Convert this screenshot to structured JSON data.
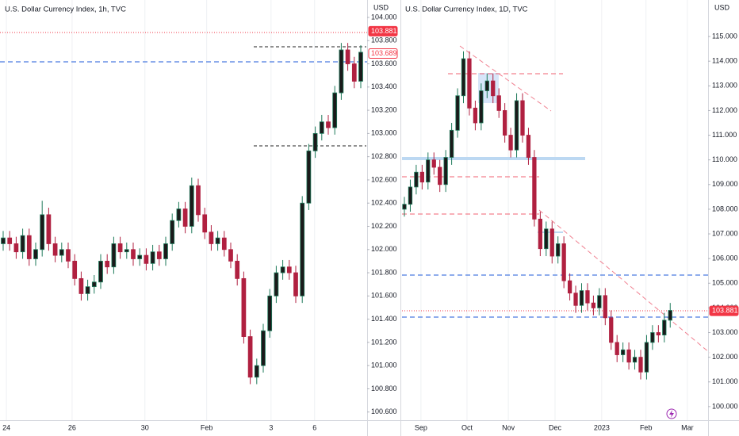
{
  "chart_data": [
    {
      "type": "candlestick",
      "title": "U.S. Dollar Currency Index, 1h, TVC",
      "currency": "USD",
      "up_color": "#1e7a5a",
      "down_color": "#b02040",
      "grid": "vertical",
      "ylim": [
        100.53,
        104.15
      ],
      "yticks": [
        {
          "value": 100.6,
          "label": "100.600"
        },
        {
          "value": 100.8,
          "label": "100.800"
        },
        {
          "value": 101,
          "label": "101.000"
        },
        {
          "value": 101.2,
          "label": "101.200"
        },
        {
          "value": 101.4,
          "label": "101.400"
        },
        {
          "value": 101.6,
          "label": "101.600"
        },
        {
          "value": 101.8,
          "label": "101.800"
        },
        {
          "value": 102,
          "label": "102.000"
        },
        {
          "value": 102.2,
          "label": "102.200"
        },
        {
          "value": 102.4,
          "label": "102.400"
        },
        {
          "value": 102.6,
          "label": "102.600"
        },
        {
          "value": 102.8,
          "label": "102.800"
        },
        {
          "value": 103,
          "label": "103.000"
        },
        {
          "value": 103.2,
          "label": "103.200"
        },
        {
          "value": 103.4,
          "label": "103.400"
        },
        {
          "value": 103.6,
          "label": "103.600"
        },
        {
          "value": 103.8,
          "label": "103.800"
        },
        {
          "value": 104,
          "label": "104.000"
        }
      ],
      "xticks": [
        {
          "value": 0.5,
          "label": "24"
        },
        {
          "value": 10.6,
          "label": "26"
        },
        {
          "value": 21.8,
          "label": "30"
        },
        {
          "value": 31.3,
          "label": "Feb"
        },
        {
          "value": 41.2,
          "label": "3"
        },
        {
          "value": 47.9,
          "label": "6"
        }
      ],
      "markers": [
        {
          "value": 103.881,
          "style": "filled"
        },
        {
          "value": 103.689,
          "style": "outlined"
        }
      ],
      "open": [
        102.05,
        102.1,
        102.05,
        101.98,
        102.12,
        101.92,
        102.0,
        102.3,
        102.05,
        101.95,
        102.0,
        101.9,
        101.75,
        101.62,
        101.68,
        101.72,
        101.9,
        101.85,
        102.05,
        101.98,
        102.0,
        101.92,
        101.95,
        101.88,
        101.98,
        101.92,
        102.05,
        102.25,
        102.35,
        102.2,
        102.55,
        102.3,
        102.15,
        102.05,
        102.1,
        102.0,
        101.9,
        101.75,
        101.25,
        100.9,
        101.0,
        101.3,
        101.6,
        101.8,
        101.85,
        101.8,
        101.6,
        102.4,
        102.85,
        103.0,
        103.1,
        103.05,
        103.35,
        103.72,
        103.6,
        103.45
      ],
      "high": [
        102.16,
        102.16,
        102.11,
        102.18,
        102.18,
        102.06,
        102.42,
        102.36,
        102.11,
        102.06,
        102.06,
        101.96,
        101.81,
        101.74,
        101.78,
        101.96,
        101.96,
        102.11,
        102.11,
        102.06,
        102.06,
        102.01,
        102.01,
        102.04,
        102.04,
        102.11,
        102.31,
        102.41,
        102.41,
        102.62,
        102.61,
        102.36,
        102.21,
        102.16,
        102.16,
        102.06,
        101.96,
        101.81,
        101.31,
        101.06,
        101.36,
        101.66,
        101.86,
        101.91,
        101.91,
        101.86,
        102.46,
        102.91,
        103.06,
        103.16,
        103.16,
        103.41,
        103.78,
        103.78,
        103.66,
        103.76
      ],
      "low": [
        101.99,
        101.99,
        101.92,
        101.92,
        101.86,
        101.86,
        101.94,
        101.99,
        101.89,
        101.89,
        101.84,
        101.69,
        101.56,
        101.56,
        101.62,
        101.66,
        101.79,
        101.79,
        101.92,
        101.92,
        101.86,
        101.86,
        101.82,
        101.82,
        101.86,
        101.86,
        101.99,
        102.19,
        102.14,
        102.14,
        102.24,
        102.09,
        101.99,
        101.99,
        101.94,
        101.84,
        101.69,
        101.19,
        100.84,
        100.84,
        100.94,
        101.24,
        101.54,
        101.74,
        101.74,
        101.54,
        101.54,
        102.34,
        102.79,
        102.94,
        102.99,
        102.99,
        103.29,
        103.54,
        103.39,
        103.39
      ],
      "close": [
        102.1,
        102.05,
        101.98,
        102.12,
        101.92,
        102.0,
        102.3,
        102.05,
        101.95,
        102.0,
        101.9,
        101.75,
        101.62,
        101.68,
        101.72,
        101.9,
        101.85,
        102.05,
        101.98,
        102.0,
        101.92,
        101.95,
        101.88,
        101.98,
        101.92,
        102.05,
        102.25,
        102.35,
        102.2,
        102.55,
        102.3,
        102.15,
        102.05,
        102.1,
        102.0,
        101.9,
        101.75,
        101.25,
        100.9,
        101.0,
        101.3,
        101.6,
        101.8,
        101.85,
        101.8,
        101.6,
        102.4,
        102.85,
        103.0,
        103.1,
        103.05,
        103.35,
        103.72,
        103.6,
        103.45,
        103.7
      ]
    },
    {
      "type": "candlestick",
      "title": "U.S. Dollar Currency Index, 1D, TVC",
      "currency": "USD",
      "up_color": "#1e7a5a",
      "down_color": "#b02040",
      "grid": "vertical",
      "ylim": [
        99.45,
        116.48
      ],
      "yticks": [
        {
          "value": 100,
          "label": "100.000"
        },
        {
          "value": 101,
          "label": "101.000"
        },
        {
          "value": 102,
          "label": "102.000"
        },
        {
          "value": 103,
          "label": "103.000"
        },
        {
          "value": 104,
          "label": "104.000"
        },
        {
          "value": 105,
          "label": "105.000"
        },
        {
          "value": 106,
          "label": "106.000"
        },
        {
          "value": 107,
          "label": "107.000"
        },
        {
          "value": 108,
          "label": "108.000"
        },
        {
          "value": 109,
          "label": "109.000"
        },
        {
          "value": 110,
          "label": "110.000"
        },
        {
          "value": 111,
          "label": "111.000"
        },
        {
          "value": 112,
          "label": "112.000"
        },
        {
          "value": 113,
          "label": "113.000"
        },
        {
          "value": 114,
          "label": "114.000"
        },
        {
          "value": 115,
          "label": "115.000"
        }
      ],
      "xticks": [
        {
          "value": 2.8,
          "label": "Sep"
        },
        {
          "value": 10.6,
          "label": "Oct"
        },
        {
          "value": 17.6,
          "label": "Nov"
        },
        {
          "value": 25.5,
          "label": "Dec"
        },
        {
          "value": 33.4,
          "label": "2023"
        },
        {
          "value": 40.9,
          "label": "Feb"
        },
        {
          "value": 47.9,
          "label": "Mar"
        }
      ],
      "markers": [
        {
          "value": 103.881,
          "style": "filled"
        }
      ],
      "open": [
        108.0,
        108.2,
        108.9,
        109.5,
        109.1,
        110.0,
        109.7,
        109.0,
        110.1,
        111.2,
        112.6,
        114.1,
        112.1,
        111.5,
        112.8,
        113.2,
        112.6,
        112.0,
        111.0,
        110.4,
        112.4,
        111.0,
        110.1,
        107.6,
        106.4,
        107.2,
        106.1,
        106.6,
        105.1,
        104.6,
        104.1,
        104.7,
        104.2,
        104.0,
        104.5,
        103.6,
        102.6,
        102.1,
        102.3,
        101.8,
        102.0,
        101.4,
        102.6,
        103.0,
        102.9,
        103.5
      ],
      "high": [
        108.5,
        109.2,
        109.8,
        109.8,
        110.3,
        110.3,
        110.0,
        110.4,
        111.5,
        112.9,
        114.4,
        114.4,
        112.4,
        113.1,
        113.5,
        113.5,
        112.9,
        112.3,
        111.3,
        112.7,
        112.7,
        111.3,
        110.4,
        107.9,
        107.5,
        107.5,
        106.9,
        106.9,
        105.4,
        104.9,
        105.0,
        105.0,
        104.5,
        104.8,
        104.8,
        103.9,
        102.9,
        102.6,
        102.6,
        102.3,
        102.3,
        102.9,
        103.3,
        103.3,
        103.8,
        104.2
      ],
      "low": [
        107.7,
        107.9,
        108.6,
        108.8,
        108.8,
        109.4,
        108.7,
        108.7,
        109.8,
        110.9,
        112.3,
        111.8,
        111.2,
        111.2,
        112.5,
        112.3,
        111.7,
        110.7,
        110.1,
        110.1,
        110.7,
        109.8,
        107.3,
        106.1,
        106.1,
        105.8,
        105.8,
        104.8,
        104.3,
        103.8,
        103.8,
        103.9,
        103.7,
        103.7,
        103.3,
        102.3,
        101.8,
        101.8,
        101.5,
        101.5,
        101.1,
        101.1,
        102.3,
        102.6,
        102.6,
        103.2
      ],
      "close": [
        108.2,
        108.9,
        109.5,
        109.1,
        110.0,
        109.7,
        109.0,
        110.1,
        111.2,
        112.6,
        114.1,
        112.1,
        111.5,
        112.8,
        113.2,
        112.6,
        112.0,
        111.0,
        110.4,
        112.4,
        111.0,
        110.1,
        107.6,
        106.4,
        107.2,
        106.1,
        106.6,
        105.1,
        104.6,
        104.1,
        104.7,
        104.2,
        104.0,
        104.5,
        103.6,
        102.6,
        102.1,
        102.3,
        101.8,
        102.0,
        101.4,
        102.6,
        103.0,
        102.9,
        103.5,
        103.9
      ]
    }
  ]
}
